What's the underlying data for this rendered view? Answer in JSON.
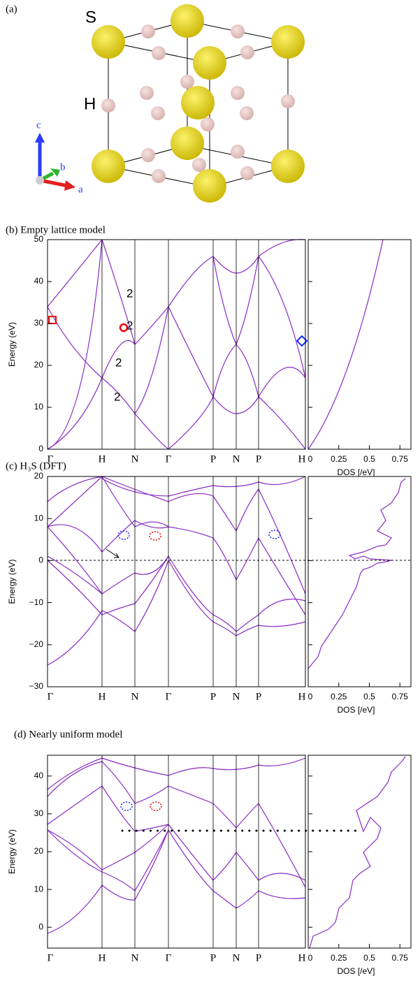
{
  "panel_a": {
    "label": "(a)",
    "atoms": [
      "S",
      "H"
    ],
    "axes": [
      "c",
      "b",
      "a"
    ]
  },
  "panels": [
    {
      "title": "(b) Empty lattice model",
      "ylabel": "Energy (eV)",
      "ylim": [
        0,
        50
      ],
      "yticks": [
        0,
        10,
        20,
        30,
        40,
        50
      ],
      "kpoints": [
        "Γ",
        "H",
        "N",
        "Γ",
        "P",
        "N",
        "P",
        "H"
      ],
      "dos_xlabel": "DOS [/eV]",
      "dos_xlim": [
        0,
        0.84
      ],
      "dos_xticks": [
        0,
        0.25,
        0.5,
        0.75
      ],
      "annotations": [
        "2",
        "2",
        "2",
        "2"
      ]
    },
    {
      "title": "(c) H₃S (DFT)",
      "ylabel": "Energy (eV)",
      "ylim": [
        -30,
        20
      ],
      "yticks": [
        {
          "value": -30,
          "label": "−30"
        },
        {
          "value": -20,
          "label": "−20"
        },
        {
          "value": -10,
          "label": "−10"
        },
        0,
        10,
        20
      ],
      "kpoints": [
        "Γ",
        "H",
        "N",
        "Γ",
        "P",
        "N",
        "P",
        "H"
      ],
      "dos_xlabel": "DOS [/eV]",
      "dos_xlim": [
        0,
        0.84
      ],
      "dos_xticks": [
        0,
        0.25,
        0.5,
        0.75
      ]
    },
    {
      "title": "(d) Nearly uniform model",
      "ylabel": "Energy (eV)",
      "ylim": [
        -5.5,
        45.5
      ],
      "yticks": [
        0,
        10,
        20,
        30,
        40
      ],
      "kpoints": [
        "Γ",
        "H",
        "N",
        "Γ",
        "P",
        "N",
        "P",
        "H"
      ],
      "dos_xlabel": "DOS [/eV]",
      "dos_xlim": [
        0,
        0.84
      ],
      "dos_xticks": [
        0,
        0.25,
        0.5,
        0.75
      ]
    }
  ]
}
